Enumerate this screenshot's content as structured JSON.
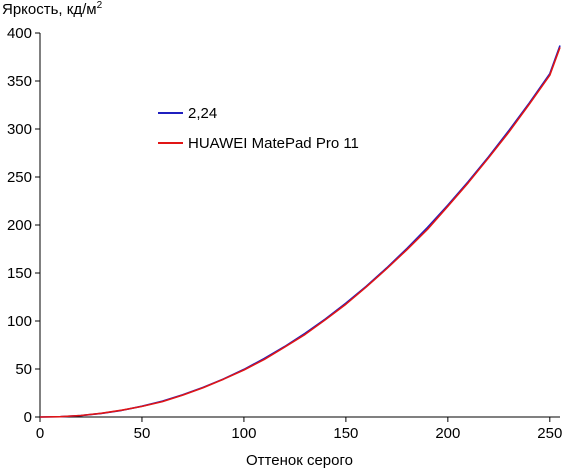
{
  "chart_data": {
    "type": "line",
    "ylabel_main": "Яркость, кд/м",
    "ylabel_sup": "2",
    "xlabel": "Оттенок серого",
    "xlim": [
      0,
      255
    ],
    "ylim": [
      0,
      400
    ],
    "x_ticks": [
      0,
      50,
      100,
      150,
      200,
      250
    ],
    "y_ticks": [
      0,
      50,
      100,
      150,
      200,
      250,
      300,
      350,
      400
    ],
    "legend_position": "upper-left (inside)",
    "grid": false,
    "series": [
      {
        "name": "2,24",
        "color": "#1f1fbf",
        "x": [
          0,
          10,
          20,
          30,
          40,
          50,
          60,
          70,
          80,
          90,
          100,
          110,
          120,
          130,
          140,
          150,
          160,
          170,
          180,
          190,
          200,
          210,
          220,
          230,
          240,
          250,
          255
        ],
        "y": [
          0,
          0.3,
          1.5,
          3.7,
          6.9,
          11.2,
          16.6,
          23.1,
          30.8,
          39.6,
          49.6,
          60.9,
          73.4,
          87.2,
          102.2,
          118.6,
          136.3,
          155.3,
          175.7,
          197.5,
          220.6,
          245.2,
          271.1,
          298.5,
          327.3,
          357.6,
          387
        ]
      },
      {
        "name": "HUAWEI MatePad Pro 11",
        "color": "#e11515",
        "x": [
          0,
          10,
          20,
          30,
          40,
          50,
          60,
          70,
          80,
          90,
          100,
          110,
          120,
          130,
          140,
          150,
          160,
          170,
          180,
          190,
          200,
          210,
          220,
          230,
          240,
          250,
          255
        ],
        "y": [
          0,
          0.3,
          1.6,
          3.9,
          7.1,
          11.0,
          16.0,
          22.8,
          30.5,
          39.4,
          49.0,
          60.0,
          72.8,
          86.0,
          101.5,
          117.5,
          135.5,
          154.5,
          174.5,
          195.5,
          219.5,
          244.0,
          270.0,
          297.0,
          326.0,
          356.0,
          385
        ]
      }
    ]
  }
}
